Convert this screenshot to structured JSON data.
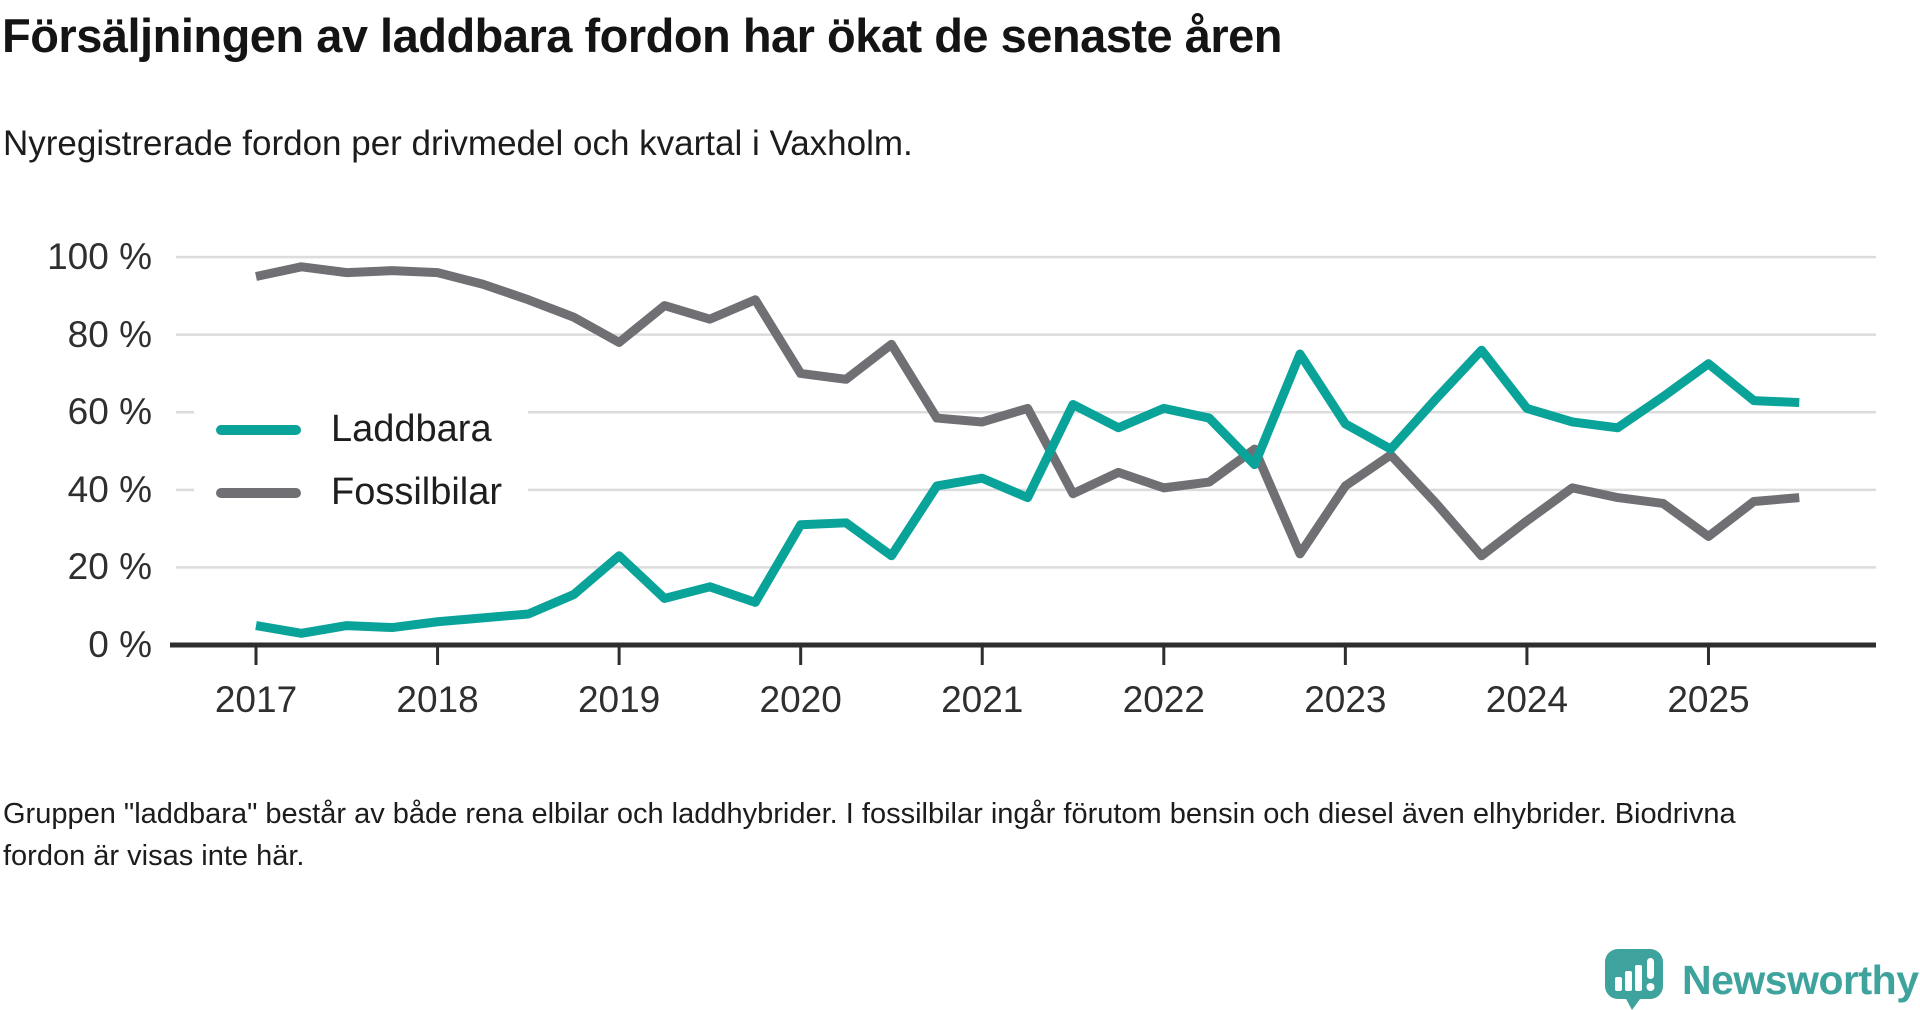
{
  "header": {
    "title": "Försäljningen av laddbara fordon har ökat de senaste åren",
    "subtitle": "Nyregistrerade fordon per drivmedel och kvartal i Vaxholm."
  },
  "chart_data": {
    "type": "line",
    "title": "Försäljningen av laddbara fordon har ökat de senaste åren",
    "subtitle": "Nyregistrerade fordon per drivmedel och kvartal i Vaxholm.",
    "x": [
      "2017 Q1",
      "2017 Q2",
      "2017 Q3",
      "2017 Q4",
      "2018 Q1",
      "2018 Q2",
      "2018 Q3",
      "2018 Q4",
      "2019 Q1",
      "2019 Q2",
      "2019 Q3",
      "2019 Q4",
      "2020 Q1",
      "2020 Q2",
      "2020 Q3",
      "2020 Q4",
      "2021 Q1",
      "2021 Q2",
      "2021 Q3",
      "2021 Q4",
      "2022 Q1",
      "2022 Q2",
      "2022 Q3",
      "2022 Q4",
      "2023 Q1",
      "2023 Q2",
      "2023 Q3",
      "2023 Q4",
      "2024 Q1",
      "2024 Q2",
      "2024 Q3",
      "2024 Q4",
      "2025 Q1",
      "2025 Q2",
      "2025 Q3"
    ],
    "series": [
      {
        "name": "Laddbara",
        "color": "#0aa39a",
        "values": [
          5,
          3,
          5,
          4.5,
          6,
          7,
          8,
          13,
          23,
          12,
          15,
          11,
          31,
          31.5,
          23,
          41,
          43,
          38,
          62,
          56,
          61,
          58.5,
          46.5,
          75,
          57,
          50.5,
          63.5,
          76,
          61,
          57.5,
          56,
          64,
          72.5,
          63,
          62.5
        ]
      },
      {
        "name": "Fossilbilar",
        "color": "#706f74",
        "values": [
          95,
          97.5,
          96,
          96.5,
          96,
          93,
          89,
          84.5,
          78,
          87.5,
          84,
          89,
          70,
          68.5,
          77.5,
          58.5,
          57.5,
          61,
          39,
          44.5,
          40.5,
          42,
          50.5,
          23.5,
          41,
          49,
          36.5,
          23,
          32,
          40.5,
          38,
          36.5,
          28,
          37,
          38
        ]
      }
    ],
    "xlabel": "",
    "ylabel": "",
    "ylim": [
      0,
      100
    ],
    "y_ticks": [
      "0 %",
      "20 %",
      "40 %",
      "60 %",
      "80 %",
      "100 %"
    ],
    "x_ticks": [
      "2017",
      "2018",
      "2019",
      "2020",
      "2021",
      "2022",
      "2023",
      "2024",
      "2025"
    ],
    "grid": true,
    "grid_color": "#dcdcdc",
    "axis_color": "#2e2e2e",
    "legend_position": "upper-left-inside"
  },
  "legend": {
    "items": [
      {
        "label": "Laddbara",
        "color": "#0aa39a"
      },
      {
        "label": "Fossilbilar",
        "color": "#706f74"
      }
    ]
  },
  "footer": {
    "note": "Gruppen \"laddbara\" består av både rena elbilar och laddhybrider. I fossilbilar ingår förutom bensin och diesel även elhybrider. Biodrivna fordon är visas inte här."
  },
  "brand": {
    "name": "Newsworthy",
    "color": "#3fa39d"
  }
}
